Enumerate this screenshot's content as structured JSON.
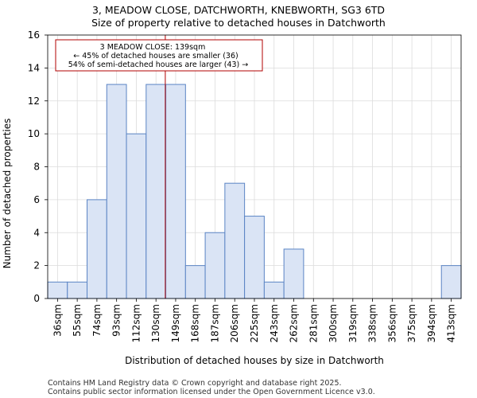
{
  "title_line1": "3, MEADOW CLOSE, DATCHWORTH, KNEBWORTH, SG3 6TD",
  "title_line2": "Size of property relative to detached houses in Datchworth",
  "footer_line1": "Contains HM Land Registry data © Crown copyright and database right 2025.",
  "footer_line2": "Contains public sector information licensed under the Open Government Licence v3.0.",
  "annotation": {
    "line1": "3 MEADOW CLOSE: 139sqm",
    "line2": "← 45% of detached houses are smaller (36)",
    "line3": "54% of semi-detached houses are larger (43) →"
  },
  "colors": {
    "bar_fill": "#dae4f5",
    "bar_edge": "#5b84c4",
    "marker": "#b00000",
    "grid": "#dcdcdc"
  },
  "chart_data": {
    "type": "bar",
    "title": "Size of property relative to detached houses in Datchworth",
    "xlabel": "Distribution of detached houses by size in Datchworth",
    "ylabel": "Number of detached properties",
    "categories": [
      "36sqm",
      "55sqm",
      "74sqm",
      "93sqm",
      "112sqm",
      "130sqm",
      "149sqm",
      "168sqm",
      "187sqm",
      "206sqm",
      "225sqm",
      "243sqm",
      "262sqm",
      "281sqm",
      "300sqm",
      "319sqm",
      "338sqm",
      "356sqm",
      "375sqm",
      "394sqm",
      "413sqm"
    ],
    "values": [
      1,
      1,
      6,
      13,
      10,
      13,
      13,
      2,
      4,
      7,
      5,
      1,
      3,
      0,
      0,
      0,
      0,
      0,
      0,
      0,
      2
    ],
    "ylim": [
      0,
      16
    ],
    "yticks": [
      0,
      2,
      4,
      6,
      8,
      10,
      12,
      14,
      16
    ],
    "grid": true,
    "marker_value_sqm": 139,
    "marker_label": "3 MEADOW CLOSE: 139sqm"
  }
}
